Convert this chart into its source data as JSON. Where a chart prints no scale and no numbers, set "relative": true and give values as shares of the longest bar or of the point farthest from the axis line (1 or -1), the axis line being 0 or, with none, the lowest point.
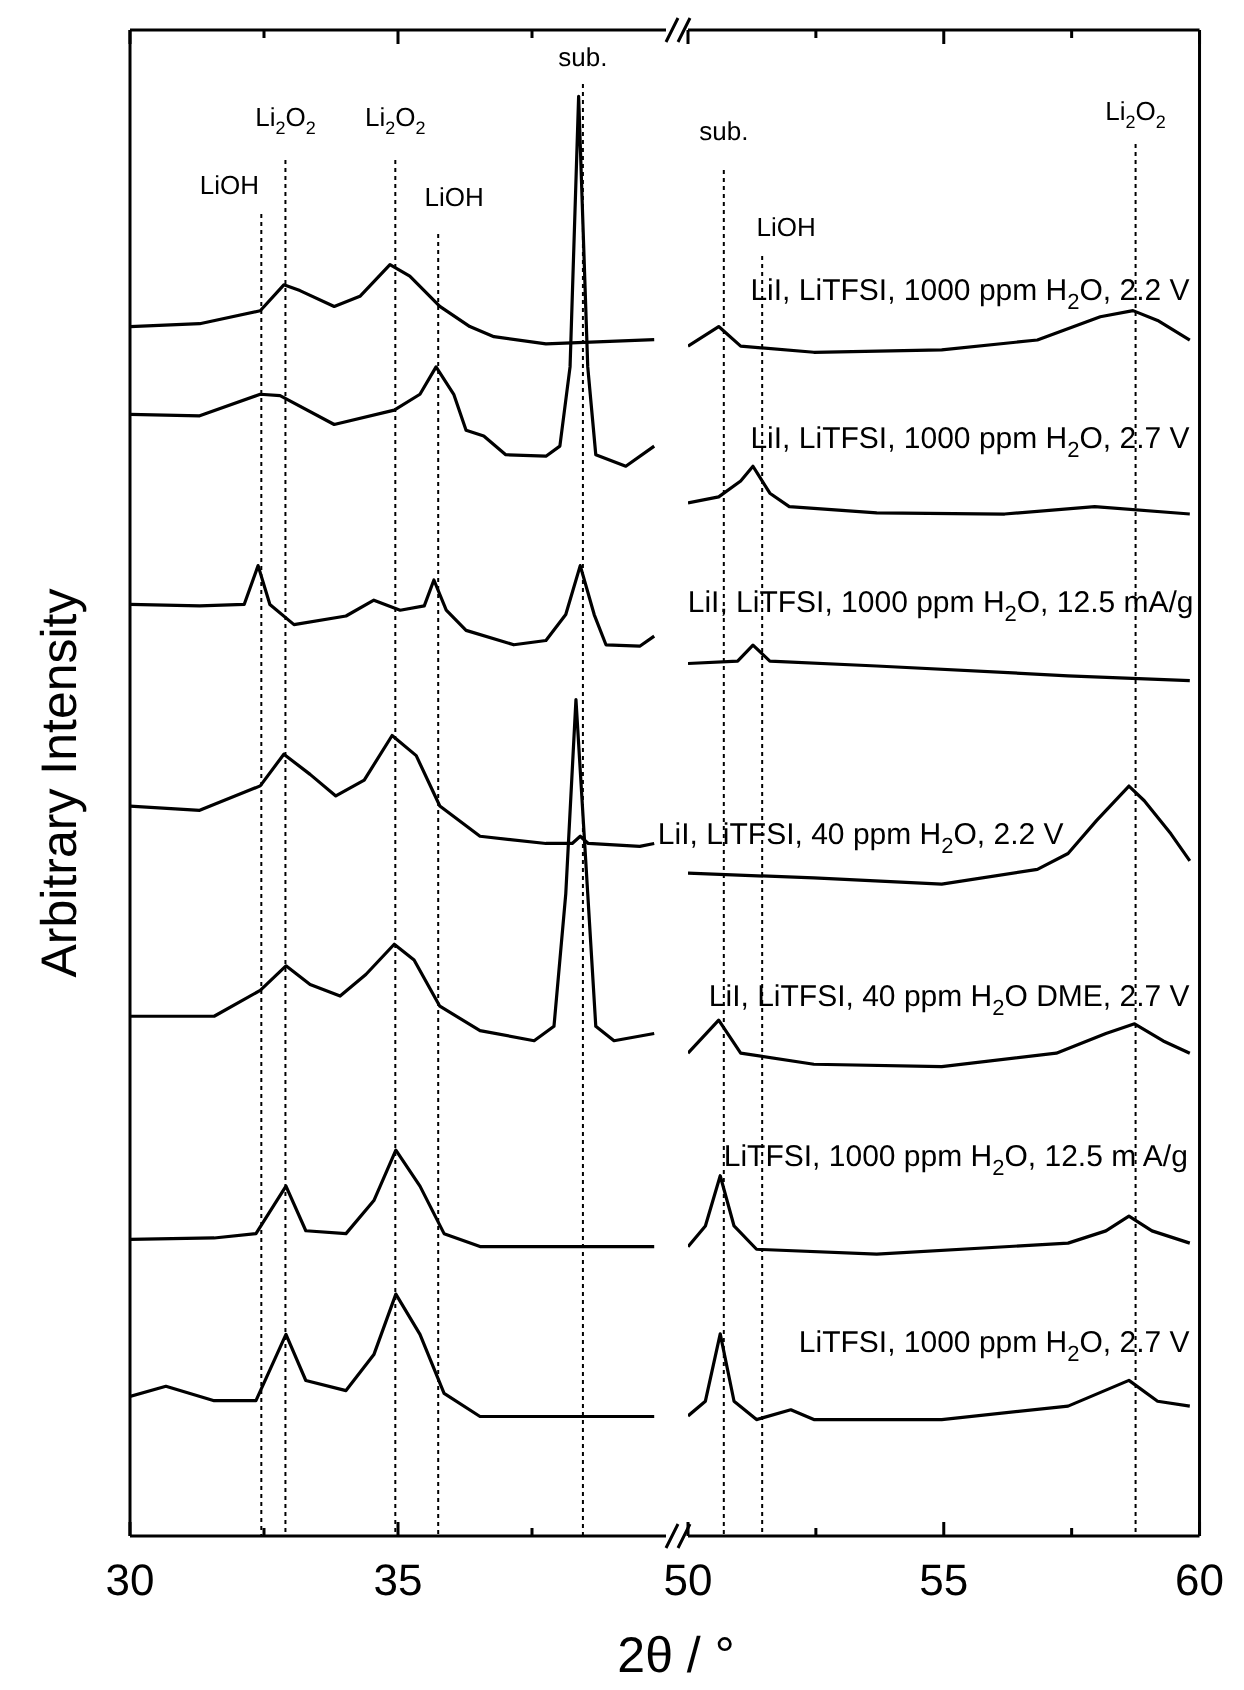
{
  "chart_data": [
    {
      "type": "line",
      "ylabel": "Arbitrary Intensity",
      "relative": true,
      "legend": false,
      "grid": false,
      "marker": "none",
      "line_style": "solid",
      "xlim": [
        30,
        40
      ],
      "xticks": [
        30,
        {
          "value": 32.5,
          "label": null
        },
        35,
        {
          "value": 37.5,
          "label": null
        }
      ],
      "ref_lines": [
        {
          "axis": "x",
          "value": 32.45,
          "label": "LiOH",
          "line_style": "dotted",
          "color": "#000000"
        },
        {
          "axis": "x",
          "value": 32.9,
          "label": "Li$_{2}$O$_{2}$",
          "line_style": "dotted",
          "color": "#000000"
        },
        {
          "axis": "x",
          "value": 34.95,
          "label": "Li$_{2}$O$_{2}$",
          "line_style": "dotted",
          "color": "#000000"
        },
        {
          "axis": "x",
          "value": 35.75,
          "label": "LiOH",
          "line_style": "dotted",
          "color": "#000000"
        },
        {
          "axis": "x",
          "value": 38.45,
          "label": "sub.",
          "line_style": "dotted",
          "color": "#000000"
        }
      ],
      "series": [
        {
          "color": "#000000",
          "x": [
            30,
            31.3,
            32.43,
            32.87,
            33.17,
            33.81,
            34.29,
            34.85,
            35.22,
            35.78,
            36.34,
            36.79,
            37.76,
            39.78
          ],
          "values": [
            0.84,
            0.842,
            0.851,
            0.869,
            0.865,
            0.854,
            0.861,
            0.883,
            0.875,
            0.854,
            0.84,
            0.833,
            0.828,
            0.831
          ]
        },
        {
          "color": "#000000",
          "x": [
            30,
            31.3,
            32.43,
            32.8,
            33.81,
            34.93,
            35.41,
            35.71,
            36.04,
            36.27,
            36.6,
            37.01,
            37.76,
            38.02,
            38.21,
            38.37,
            38.54,
            38.69,
            39.25,
            39.78
          ],
          "values": [
            0.779,
            0.778,
            0.793,
            0.792,
            0.772,
            0.782,
            0.793,
            0.812,
            0.793,
            0.768,
            0.764,
            0.751,
            0.75,
            0.757,
            0.812,
            1,
            0.812,
            0.751,
            0.743,
            0.757
          ]
        },
        {
          "color": "#000000",
          "x": [
            30,
            31.3,
            32.13,
            32.39,
            32.61,
            33.06,
            34.03,
            34.55,
            35.04,
            35.49,
            35.67,
            35.9,
            36.27,
            37.16,
            37.76,
            38.13,
            38.4,
            38.66,
            38.88,
            39.51,
            39.78
          ],
          "values": [
            0.647,
            0.646,
            0.647,
            0.674,
            0.647,
            0.633,
            0.639,
            0.65,
            0.643,
            0.646,
            0.664,
            0.643,
            0.629,
            0.619,
            0.622,
            0.64,
            0.674,
            0.64,
            0.619,
            0.618,
            0.625
          ]
        },
        {
          "color": "#000000",
          "x": [
            30,
            31.3,
            32.43,
            32.87,
            33.36,
            33.84,
            34.37,
            34.89,
            35.34,
            35.78,
            36.53,
            37.76,
            38.25,
            38.4,
            38.55,
            39.51,
            39.78
          ],
          "values": [
            0.507,
            0.504,
            0.521,
            0.543,
            0.529,
            0.514,
            0.525,
            0.556,
            0.542,
            0.507,
            0.486,
            0.481,
            0.481,
            0.486,
            0.481,
            0.479,
            0.481
          ]
        },
        {
          "color": "#000000",
          "x": [
            30,
            31.57,
            32.43,
            32.91,
            33.36,
            33.92,
            34.4,
            34.93,
            35.3,
            35.78,
            36.53,
            37.54,
            37.91,
            38.13,
            38.32,
            38.54,
            38.69,
            39.03,
            39.78
          ],
          "values": [
            0.361,
            0.361,
            0.379,
            0.396,
            0.383,
            0.375,
            0.39,
            0.411,
            0.4,
            0.368,
            0.351,
            0.344,
            0.354,
            0.446,
            0.581,
            0.446,
            0.354,
            0.344,
            0.349
          ]
        },
        {
          "color": "#000000",
          "x": [
            30,
            31.57,
            32.35,
            32.91,
            33.28,
            34.03,
            34.55,
            34.96,
            35.41,
            35.86,
            36.53,
            39.78
          ],
          "values": [
            0.206,
            0.207,
            0.21,
            0.243,
            0.212,
            0.21,
            0.233,
            0.268,
            0.243,
            0.21,
            0.201,
            0.201
          ]
        },
        {
          "color": "#000000",
          "x": [
            30,
            30.67,
            31.57,
            32.35,
            32.91,
            33.28,
            34.03,
            34.55,
            34.96,
            35.41,
            35.86,
            36.53,
            39.78
          ],
          "values": [
            0.097,
            0.104,
            0.094,
            0.094,
            0.14,
            0.108,
            0.101,
            0.126,
            0.168,
            0.14,
            0.099,
            0.083,
            0.083
          ]
        }
      ]
    },
    {
      "type": "line",
      "xlabel": "2θ / °",
      "relative": true,
      "legend": false,
      "grid": false,
      "marker": "none",
      "line_style": "solid",
      "xlim": [
        50,
        60
      ],
      "xticks": [
        50,
        {
          "value": 52.5,
          "label": null
        },
        55,
        {
          "value": 57.5,
          "label": null
        },
        60
      ],
      "ref_lines": [
        {
          "axis": "x",
          "value": 50.7,
          "label": "sub.",
          "line_style": "dotted",
          "color": "#000000"
        },
        {
          "axis": "x",
          "value": 51.45,
          "label": "LiOH",
          "line_style": "dotted",
          "color": "#000000"
        },
        {
          "axis": "x",
          "value": 58.75,
          "label": "Li$_{2}$O$_{2}$",
          "line_style": "dotted",
          "color": "#000000"
        }
      ],
      "series": [
        {
          "name": "LiI, LiTFSI, 1000 ppm H$_{2}$O, 2.2 V",
          "color": "#000000",
          "x": [
            50,
            50.6,
            51.03,
            52.46,
            54.96,
            56.83,
            58.06,
            58.7,
            59.18,
            59.81
          ],
          "values": [
            0.971,
            0.987,
            0.971,
            0.966,
            0.968,
            0.976,
            0.995,
            1,
            0.992,
            0.976
          ]
        },
        {
          "name": "LiI, LiTFSI, 1000 ppm H$_{2}$O, 2.7 V",
          "color": "#000000",
          "x": [
            50,
            50.6,
            51.03,
            51.27,
            51.6,
            51.98,
            53.69,
            56.19,
            57.95,
            59.81
          ],
          "values": [
            0.843,
            0.848,
            0.861,
            0.873,
            0.851,
            0.84,
            0.835,
            0.834,
            0.84,
            0.834
          ]
        },
        {
          "name": "LiI, LiTFSI, 1000 ppm H$_{2}$O, 12.5 mA/g",
          "color": "#000000",
          "x": [
            50,
            50.97,
            51.27,
            51.6,
            53.69,
            57.43,
            59.81
          ],
          "values": [
            0.712,
            0.714,
            0.727,
            0.714,
            0.71,
            0.702,
            0.698
          ]
        },
        {
          "name": "LiI, LiTFSI, 40 ppm H$_{2}$O, 2.2 V",
          "color": "#000000",
          "x": [
            50,
            52.46,
            54.96,
            56.83,
            57.43,
            57.99,
            58.62,
            58.92,
            59.44,
            59.81
          ],
          "values": [
            0.541,
            0.537,
            0.532,
            0.544,
            0.557,
            0.584,
            0.612,
            0.6,
            0.573,
            0.551
          ]
        },
        {
          "name": "LiI, LiTFSI, 40 ppm H$_{2}$O DME, 2.7 V",
          "color": "#000000",
          "x": [
            50,
            50.6,
            51.03,
            52.46,
            54.96,
            57.2,
            58.17,
            58.73,
            59.29,
            59.81
          ],
          "values": [
            0.394,
            0.421,
            0.394,
            0.385,
            0.383,
            0.394,
            0.41,
            0.418,
            0.404,
            0.394
          ]
        },
        {
          "name": "LiTFSI, 1000 ppm H$_{2}$O, 12.5 m A/g",
          "color": "#000000",
          "x": [
            50,
            50.34,
            50.63,
            50.9,
            51.34,
            53.69,
            57.43,
            58.17,
            58.62,
            59.07,
            59.81
          ],
          "values": [
            0.236,
            0.253,
            0.294,
            0.253,
            0.234,
            0.23,
            0.239,
            0.249,
            0.261,
            0.249,
            0.239
          ]
        },
        {
          "name": "LiTFSI, 1000 ppm H$_{2}$O, 2.7 V",
          "color": "#000000",
          "x": [
            50,
            50.34,
            50.63,
            50.9,
            51.34,
            52.01,
            52.46,
            54.96,
            57.43,
            58.62,
            59.18,
            59.81
          ],
          "values": [
            0.098,
            0.11,
            0.165,
            0.11,
            0.095,
            0.103,
            0.095,
            0.095,
            0.106,
            0.127,
            0.11,
            0.106
          ]
        }
      ]
    }
  ]
}
